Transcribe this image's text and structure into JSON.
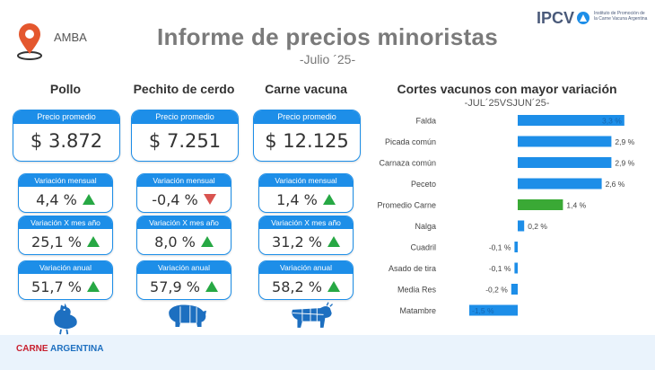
{
  "header": {
    "region": "AMBA",
    "title": "Informe de precios minoristas",
    "subtitle": "-Julio ´25-",
    "logo_text": "IPCV",
    "logo_subtext": "Instituto de Promoción de la Carne Vacuna Argentina"
  },
  "labels": {
    "price_header": "Precio promedio",
    "monthly": "Variación mensual",
    "yoy_month": "Variación X mes año",
    "annual": "Variación anual"
  },
  "products": [
    {
      "name": "Pollo",
      "price": "$ 3.872",
      "monthly": "4,4 %",
      "monthly_trend": "up",
      "yoy_month": "25,1 %",
      "yoy_trend": "up",
      "annual": "51,7 %",
      "annual_trend": "up",
      "icon": "chicken-icon"
    },
    {
      "name": "Pechito de cerdo",
      "price": "$ 7.251",
      "monthly": "-0,4 %",
      "monthly_trend": "down",
      "yoy_month": "8,0 %",
      "yoy_trend": "up",
      "annual": "57,9 %",
      "annual_trend": "up",
      "icon": "pig-icon"
    },
    {
      "name": "Carne vacuna",
      "price": "$ 12.125",
      "monthly": "1,4 %",
      "monthly_trend": "up",
      "yoy_month": "31,2 %",
      "yoy_trend": "up",
      "annual": "58,2 %",
      "annual_trend": "up",
      "icon": "cow-icon"
    }
  ],
  "colors": {
    "accent": "#1d8ee8",
    "highlight": "#3aa935",
    "up": "#27a844",
    "down": "#d9534f"
  },
  "chart_data": {
    "type": "bar",
    "orientation": "horizontal",
    "title": "Cortes vacunos con mayor variación",
    "subtitle": "-JUL´25VSJUN´25-",
    "categories": [
      "Falda",
      "Picada común",
      "Carnaza común",
      "Peceto",
      "Promedio Carne",
      "Nalga",
      "Cuadril",
      "Asado de tira",
      "Media Res",
      "Matambre"
    ],
    "values": [
      3.3,
      2.9,
      2.9,
      2.6,
      1.4,
      0.2,
      -0.1,
      -0.1,
      -0.2,
      -1.5
    ],
    "value_labels": [
      "3,3 %",
      "2,9 %",
      "2,9 %",
      "2,6 %",
      "1,4 %",
      "0,2 %",
      "-0,1 %",
      "-0,1 %",
      "-0,2 %",
      "-1,5 %"
    ],
    "highlight_category": "Promedio Carne",
    "grid": false
  },
  "footer": {
    "brand_a": "CARNE",
    "brand_b": "ARGENTINA"
  }
}
